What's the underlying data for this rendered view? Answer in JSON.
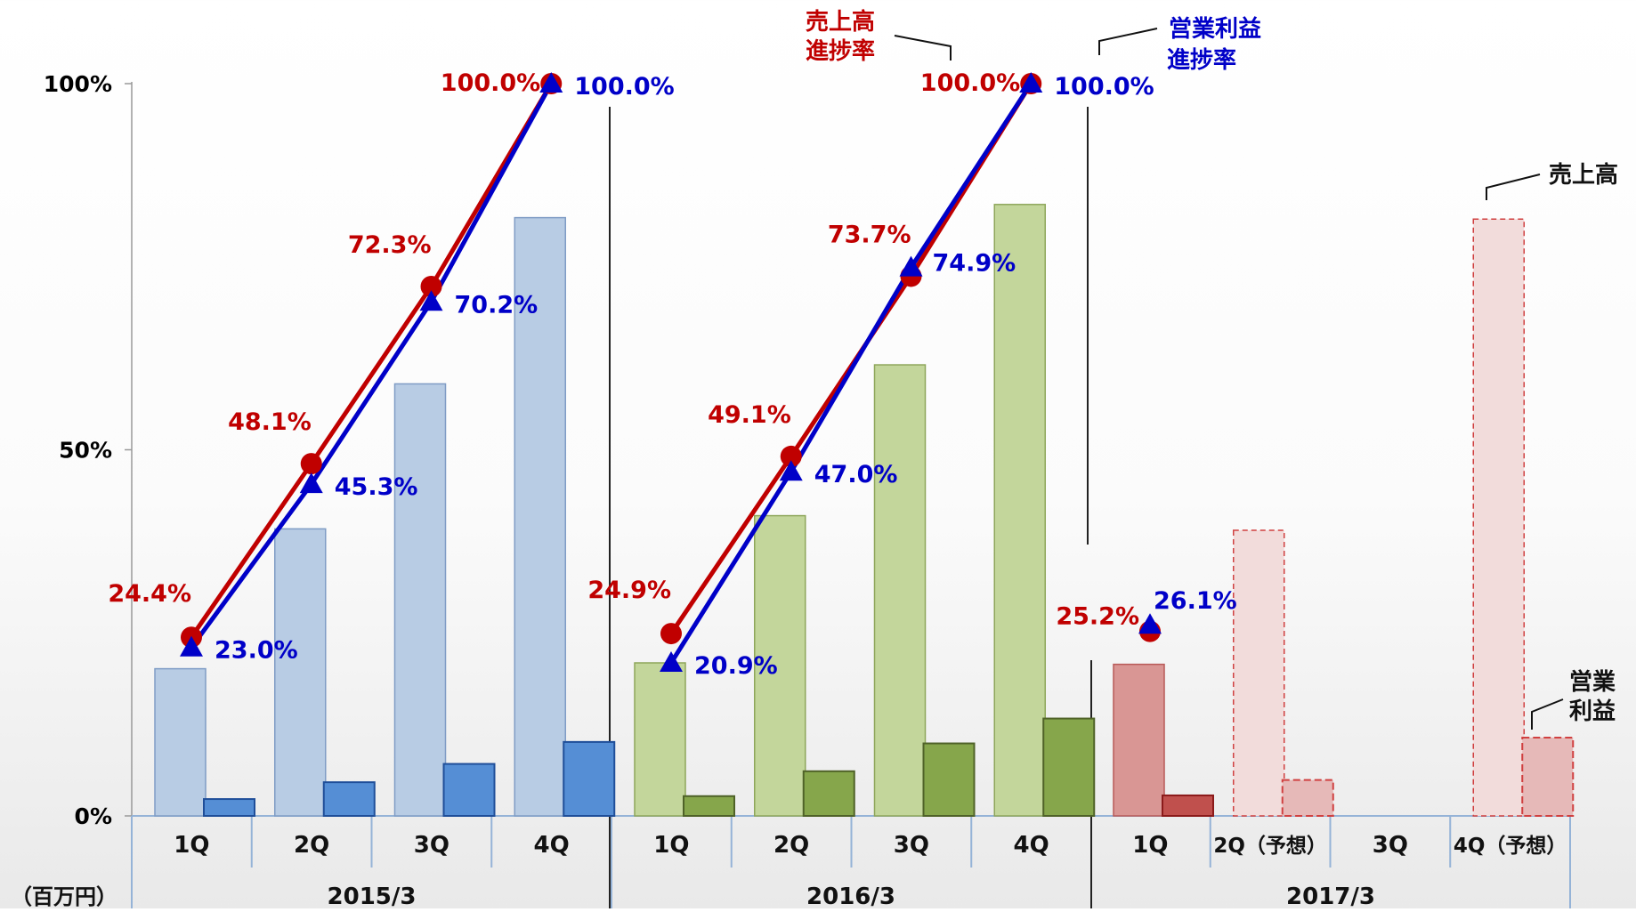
{
  "chart_data": {
    "type": "bar",
    "unit_label": "（百万円）",
    "y_ticks": [
      "100%",
      "50%",
      "0%"
    ],
    "ylim": [
      0,
      100
    ],
    "groups": [
      {
        "name": "2015/3",
        "style": "blue",
        "quarters": [
          {
            "label": "1Q",
            "sales_bar": 20.1,
            "profit_bar": 2.3,
            "sales_pct": 24.4,
            "sales_pct_label": "24.4%",
            "profit_pct": 23.0,
            "profit_pct_label": "23.0%"
          },
          {
            "label": "2Q",
            "sales_bar": 39.2,
            "profit_bar": 4.6,
            "sales_pct": 48.1,
            "sales_pct_label": "48.1%",
            "profit_pct": 45.3,
            "profit_pct_label": "45.3%"
          },
          {
            "label": "3Q",
            "sales_bar": 59.0,
            "profit_bar": 7.1,
            "sales_pct": 72.3,
            "sales_pct_label": "72.3%",
            "profit_pct": 70.2,
            "profit_pct_label": "70.2%"
          },
          {
            "label": "4Q",
            "sales_bar": 81.7,
            "profit_bar": 10.1,
            "sales_pct": 100.0,
            "sales_pct_label": "100.0%",
            "profit_pct": 100.0,
            "profit_pct_label": "100.0%"
          }
        ]
      },
      {
        "name": "2016/3",
        "style": "green",
        "quarters": [
          {
            "label": "1Q",
            "sales_bar": 20.9,
            "profit_bar": 2.7,
            "sales_pct": 24.9,
            "sales_pct_label": "24.9%",
            "profit_pct": 20.9,
            "profit_pct_label": "20.9%"
          },
          {
            "label": "2Q",
            "sales_bar": 41.0,
            "profit_bar": 6.1,
            "sales_pct": 49.1,
            "sales_pct_label": "49.1%",
            "profit_pct": 47.0,
            "profit_pct_label": "47.0%"
          },
          {
            "label": "3Q",
            "sales_bar": 61.6,
            "profit_bar": 9.9,
            "sales_pct": 73.7,
            "sales_pct_label": "73.7%",
            "profit_pct": 74.9,
            "profit_pct_label": "74.9%"
          },
          {
            "label": "4Q",
            "sales_bar": 83.5,
            "profit_bar": 13.3,
            "sales_pct": 100.0,
            "sales_pct_label": "100.0%",
            "profit_pct": 100.0,
            "profit_pct_label": "100.0%"
          }
        ]
      },
      {
        "name": "2017/3",
        "style": "red",
        "quarters": [
          {
            "label": "1Q",
            "sales_bar": 20.7,
            "profit_bar": 2.8,
            "sales_pct": 25.2,
            "sales_pct_label": "25.2%",
            "profit_pct": 26.1,
            "profit_pct_label": "26.1%",
            "forecast": false
          },
          {
            "label": "2Q（予想）",
            "sales_bar": 39.0,
            "profit_bar": 4.9,
            "forecast": true
          },
          {
            "label": "3Q"
          },
          {
            "label": "4Q（予想）",
            "sales_bar": 81.5,
            "profit_bar": 10.7,
            "forecast": true
          }
        ]
      }
    ],
    "annotations": {
      "sales_rate": [
        "売上高",
        "進捗率"
      ],
      "profit_rate": [
        "営業利益",
        "進捗率"
      ],
      "sales": [
        "売上高"
      ],
      "profit": [
        "営業",
        "利益"
      ]
    },
    "colors": {
      "sales_rate": "#c00000",
      "profit_rate": "#0000c8",
      "blue_light": "#b8cce4",
      "blue_light_stroke": "#7f9cc5",
      "blue_dark": "#558ed5",
      "blue_dark_stroke": "#1f4e99",
      "green_light": "#c3d69b",
      "green_light_stroke": "#8ea65a",
      "green_dark": "#86a64b",
      "green_dark_stroke": "#4f6228",
      "red_light": "#d99694",
      "red_light_stroke": "#b85a58",
      "red_dark": "#c0504d",
      "red_dark_stroke": "#8b1a1a",
      "forecast_light": "#f2dcdb",
      "forecast_dark": "#e6b9b8",
      "forecast_stroke": "#d04040",
      "axis": "#95b3d7"
    }
  }
}
